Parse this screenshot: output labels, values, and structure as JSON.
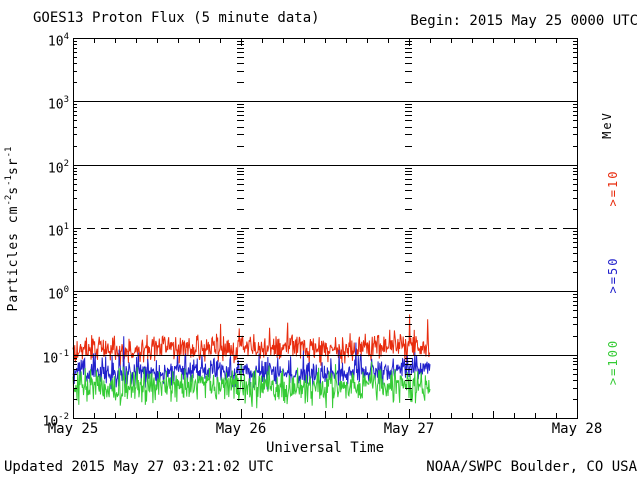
{
  "chart_data": {
    "type": "line",
    "y_scale": "log",
    "title": "GOES13 Proton Flux (5 minute data)",
    "begin_label": "Begin: 2015 May 25 0000 UTC",
    "updated_label": "Updated 2015 May 27 03:21:02 UTC",
    "source_label": "NOAA/SWPC Boulder, CO USA",
    "xlabel": "Universal Time",
    "ylabel_plain": "Particles cm-2s-1sr-1",
    "ylabel_parts": [
      [
        "t",
        "Particles cm"
      ],
      [
        "sup",
        "-2"
      ],
      [
        "t",
        "s"
      ],
      [
        "sup",
        "-1"
      ],
      [
        "t",
        "sr"
      ],
      [
        "sup",
        "-1"
      ]
    ],
    "unit_label": "MeV",
    "x_tick_labels": [
      "May 25",
      "May 26",
      "May 27",
      "May 28"
    ],
    "x_range_hours": 72,
    "x_minor_tick_hours": 3,
    "y_tick_exponents": [
      4,
      3,
      2,
      1,
      0,
      -1,
      -2
    ],
    "ylim": [
      0.01,
      10000
    ],
    "gridlines": {
      "solid_hlines_flux": [
        1000,
        100,
        1,
        0.1
      ],
      "dashed_hlines_flux": [
        10
      ],
      "vertical_day_lines": [
        "May 26",
        "May 27"
      ]
    },
    "sample_interval_minutes": 5,
    "data_end_hour": 51,
    "axis_color": "#000000",
    "background": "#ffffff",
    "series": [
      {
        "name": "Protons >=10 MeV",
        "label": ">=10",
        "color": "#e82c0e",
        "baseline_flux_every_6h": [
          0.125,
          0.12,
          0.13,
          0.12,
          0.125,
          0.13,
          0.12,
          0.13,
          0.14,
          0.13
        ],
        "typical_flux": 0.12,
        "observed_min": 0.06,
        "observed_max": 0.43,
        "noise_log_sigma": 0.11,
        "spike_prob": 0.045,
        "spike_log_max": 0.5,
        "seed": 101
      },
      {
        "name": "Protons >=50 MeV",
        "label": ">=50",
        "color": "#2121cc",
        "baseline_flux_every_6h": [
          0.055,
          0.05,
          0.052,
          0.06,
          0.055,
          0.05,
          0.052,
          0.058,
          0.06,
          0.055
        ],
        "typical_flux": 0.055,
        "observed_min": 0.025,
        "observed_max": 0.19,
        "noise_log_sigma": 0.11,
        "spike_prob": 0.03,
        "spike_log_max": 0.45,
        "seed": 202
      },
      {
        "name": "Protons >=100 MeV",
        "label": ">=100",
        "color": "#35cb35",
        "baseline_flux_every_6h": [
          0.032,
          0.03,
          0.031,
          0.034,
          0.032,
          0.03,
          0.032,
          0.033,
          0.034,
          0.032
        ],
        "typical_flux": 0.032,
        "observed_min": 0.014,
        "observed_max": 0.08,
        "noise_log_sigma": 0.13,
        "spike_prob": 0.02,
        "spike_log_max": 0.35,
        "seed": 303
      }
    ]
  }
}
